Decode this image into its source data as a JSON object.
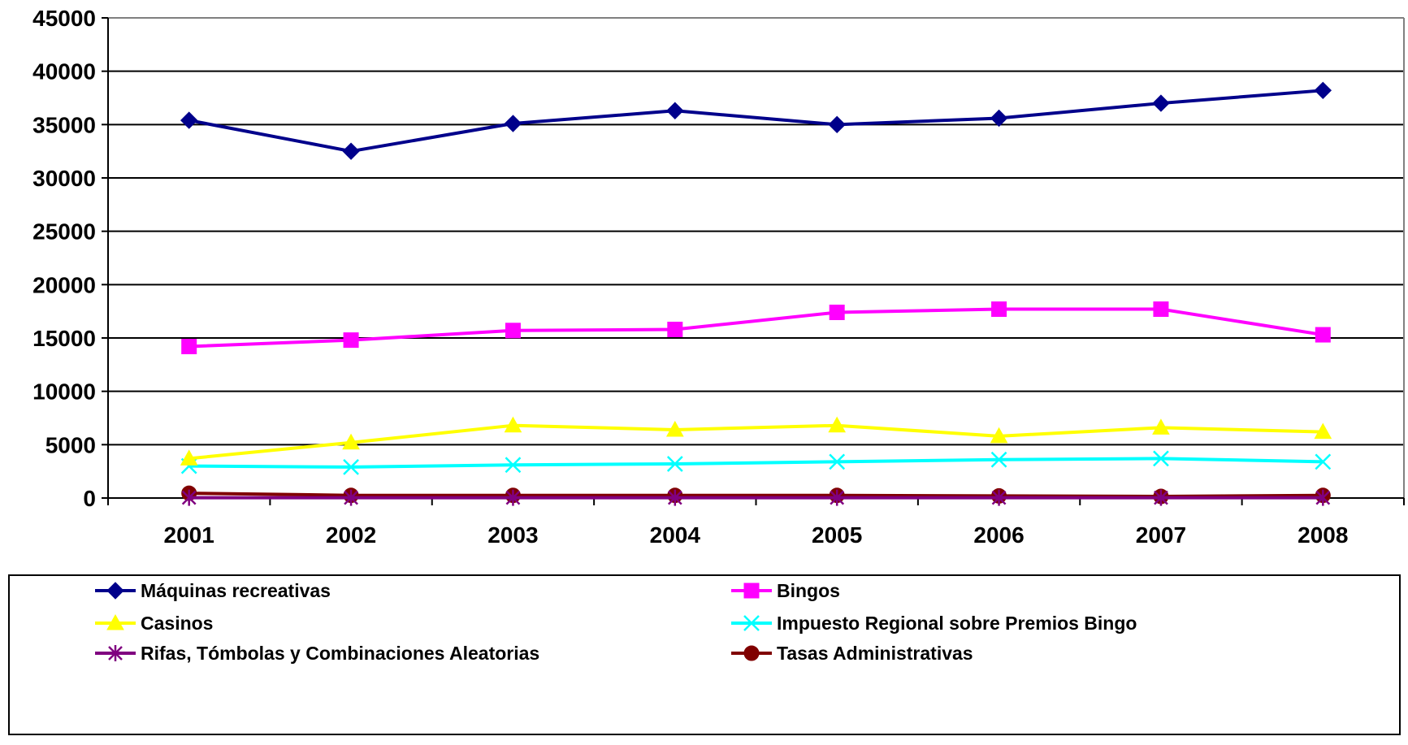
{
  "chart_data": {
    "type": "line",
    "title": "",
    "xlabel": "",
    "ylabel": "",
    "x": [
      "2001",
      "2002",
      "2003",
      "2004",
      "2005",
      "2006",
      "2007",
      "2008"
    ],
    "ylim": [
      0,
      45000
    ],
    "yticks": [
      0,
      5000,
      10000,
      15000,
      20000,
      25000,
      30000,
      35000,
      40000,
      45000
    ],
    "ytick_labels": [
      "0",
      "5000",
      "10000",
      "15000",
      "20000",
      "25000",
      "30000",
      "35000",
      "40000",
      "45000"
    ],
    "grid": "horizontal",
    "legend_position": "bottom",
    "series": [
      {
        "name": "Máquinas recreativas",
        "color": "#00008B",
        "marker": "diamond",
        "values": [
          35400,
          32500,
          35100,
          36300,
          35000,
          35600,
          37000,
          38200
        ]
      },
      {
        "name": "Bingos",
        "color": "#FF00FF",
        "marker": "square",
        "values": [
          14200,
          14800,
          15700,
          15800,
          17400,
          17700,
          17700,
          15300
        ]
      },
      {
        "name": "Casinos",
        "color": "#FFFF00",
        "marker": "triangle",
        "values": [
          3700,
          5200,
          6800,
          6400,
          6800,
          5800,
          6600,
          6200
        ]
      },
      {
        "name": "Impuesto Regional sobre Premios Bingo",
        "color": "#00FFFF",
        "marker": "x",
        "values": [
          3000,
          2900,
          3100,
          3200,
          3400,
          3600,
          3700,
          3400
        ]
      },
      {
        "name": "Rifas, Tómbolas y Combinaciones Aleatorias",
        "color": "#800080",
        "marker": "star",
        "values": [
          30,
          30,
          30,
          30,
          30,
          30,
          30,
          30
        ]
      },
      {
        "name": "Tasas Administrativas",
        "color": "#800000",
        "marker": "circle",
        "values": [
          450,
          250,
          250,
          250,
          250,
          200,
          150,
          250
        ]
      }
    ]
  }
}
